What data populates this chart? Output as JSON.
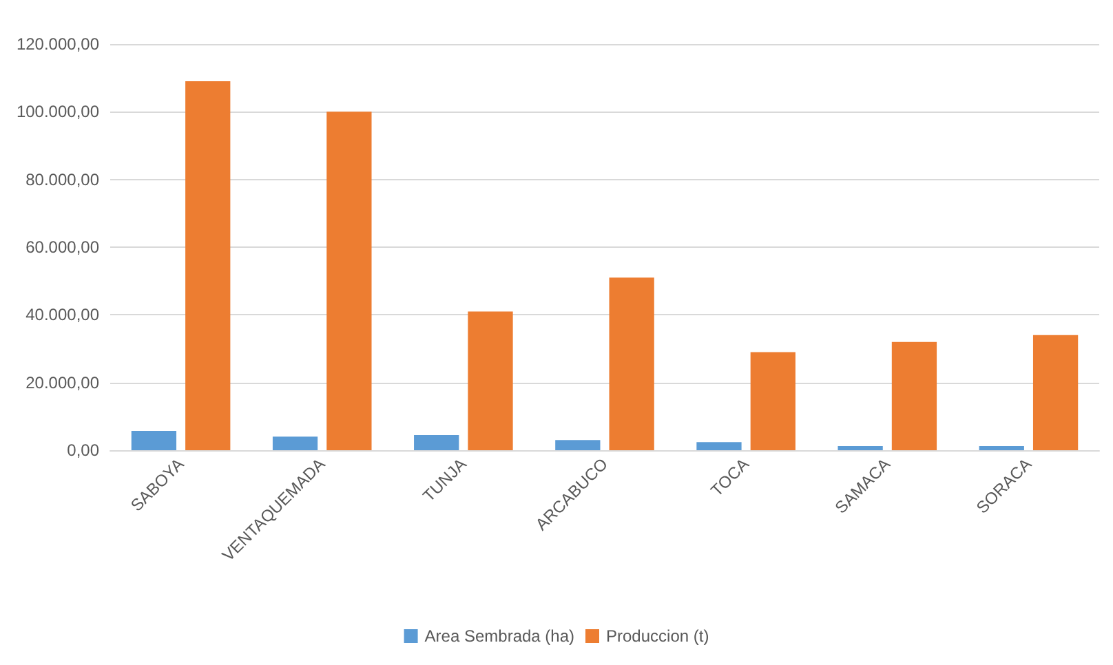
{
  "chart_data": {
    "type": "bar",
    "categories": [
      "SABOYA",
      "VENTAQUEMADA",
      "TUNJA",
      "ARCABUCO",
      "TOCA",
      "SAMACA",
      "SORACA"
    ],
    "series": [
      {
        "name": "Area Sembrada (ha)",
        "color": "#5b9bd5",
        "values": [
          5700,
          4000,
          4500,
          3000,
          2400,
          1200,
          1200
        ]
      },
      {
        "name": "Produccion (t)",
        "color": "#ed7d31",
        "values": [
          109000,
          100000,
          41000,
          51000,
          29000,
          32000,
          34000
        ]
      }
    ],
    "ylim": [
      0,
      120000
    ],
    "yticks": [
      {
        "value": 0,
        "label": "0,00"
      },
      {
        "value": 20000,
        "label": "20.000,00"
      },
      {
        "value": 40000,
        "label": "40.000,00"
      },
      {
        "value": 60000,
        "label": "60.000,00"
      },
      {
        "value": 80000,
        "label": "80.000,00"
      },
      {
        "value": 100000,
        "label": "100.000,00"
      },
      {
        "value": 120000,
        "label": "120.000,00"
      }
    ],
    "grid": "y",
    "legend": "bottom"
  }
}
